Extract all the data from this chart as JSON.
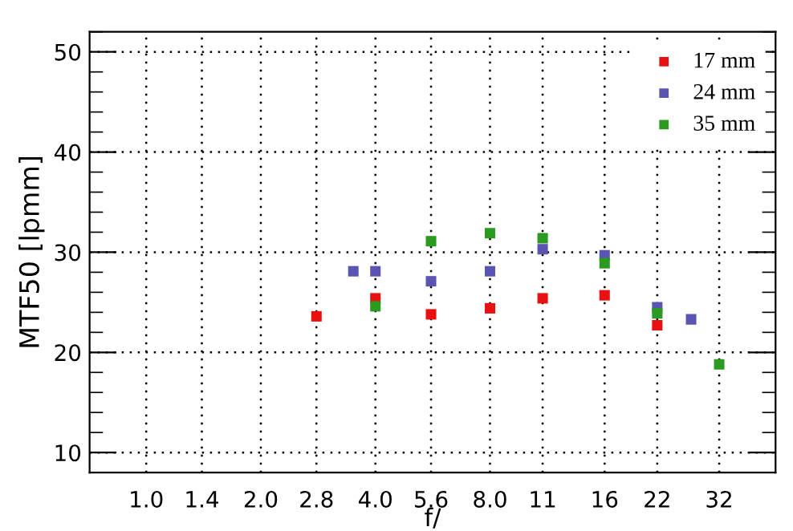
{
  "chart_data": {
    "type": "scatter",
    "xlabel": "f/",
    "ylabel": "MTF50 [lpmm]",
    "log": "x",
    "xlim": [
      0.71,
      45
    ],
    "xticks": [
      {
        "value": 1.0,
        "label": "1.0"
      },
      1.4,
      {
        "value": 2.0,
        "label": "2.0"
      },
      2.8,
      {
        "value": 4.0,
        "label": "4.0"
      },
      5.6,
      {
        "value": 8.0,
        "label": "8.0"
      },
      11,
      16,
      22,
      32
    ],
    "ylim": [
      8,
      52
    ],
    "yticks": [
      10,
      20,
      30,
      40,
      50
    ],
    "grid": true,
    "legend": "top right",
    "marker": "square",
    "series": [
      {
        "name": "17 mm",
        "color": "#e81010",
        "x": [
          2.8,
          4.0,
          5.6,
          8.0,
          11,
          16,
          22
        ],
        "values": [
          23.6,
          25.4,
          23.8,
          24.4,
          25.4,
          25.7,
          22.7
        ]
      },
      {
        "name": "24 mm",
        "color": "#5a55b0",
        "x": [
          3.5,
          4.0,
          5.6,
          8.0,
          11,
          16,
          22,
          27
        ],
        "values": [
          28.1,
          28.1,
          27.1,
          28.1,
          30.3,
          29.7,
          24.5,
          23.3
        ]
      },
      {
        "name": "35 mm",
        "color": "#2a9a20",
        "x": [
          4.0,
          5.6,
          8.0,
          11,
          16,
          22,
          32
        ],
        "values": [
          24.6,
          31.1,
          31.9,
          31.4,
          28.9,
          23.9,
          18.8
        ]
      }
    ]
  }
}
